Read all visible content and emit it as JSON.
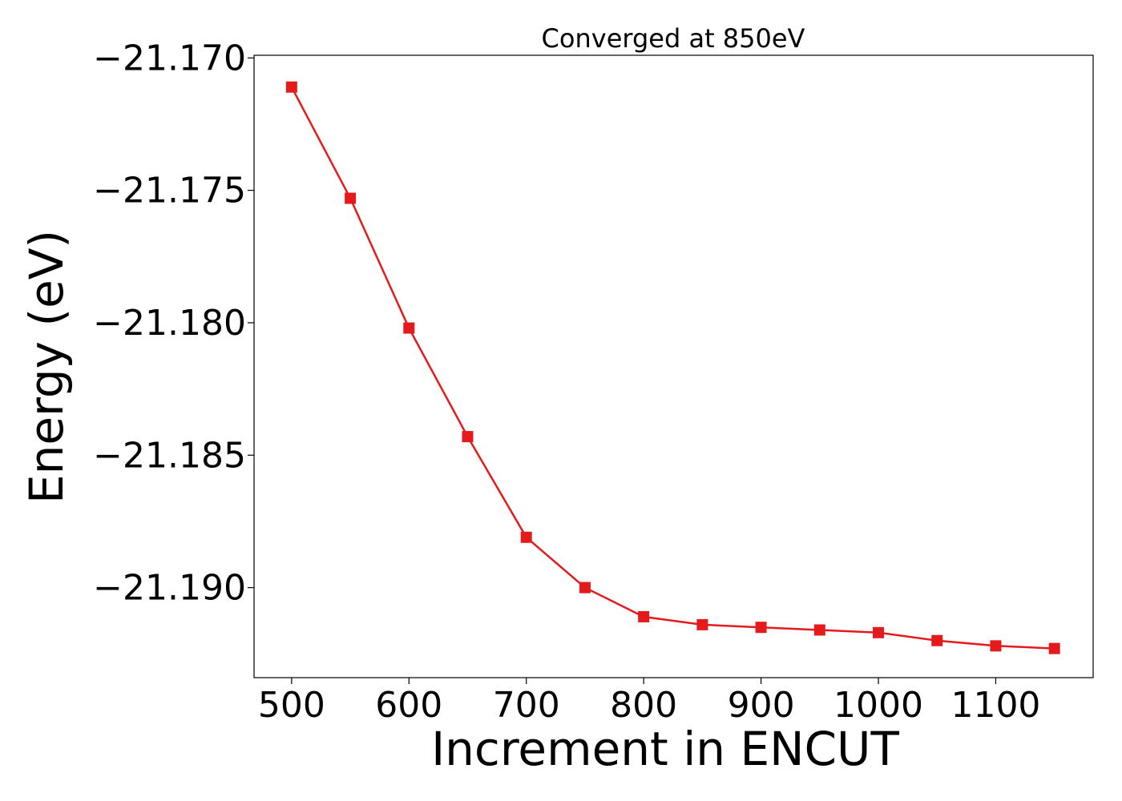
{
  "chart_data": {
    "type": "line",
    "title": "Converged at 850eV",
    "xlabel": "Increment in ENCUT",
    "ylabel": "Energy (eV)",
    "xlim": [
      468,
      1183
    ],
    "ylim": [
      -21.1934,
      -21.1699
    ],
    "x_ticks": [
      500,
      600,
      700,
      800,
      900,
      1000,
      1100
    ],
    "x_tick_labels": [
      "500",
      "600",
      "700",
      "800",
      "900",
      "1000",
      "1100"
    ],
    "y_ticks": [
      -21.17,
      -21.175,
      -21.18,
      -21.185,
      -21.19
    ],
    "y_tick_labels": [
      "−21.170",
      "−21.175",
      "−21.180",
      "−21.185",
      "−21.190"
    ],
    "grid": false,
    "legend": "none",
    "series": [
      {
        "color": "#e41a1c",
        "marker": "square",
        "x": [
          500,
          550,
          600,
          650,
          700,
          750,
          800,
          850,
          900,
          950,
          1000,
          1050,
          1100,
          1150
        ],
        "y": [
          -21.1711,
          -21.1753,
          -21.1802,
          -21.1843,
          -21.1881,
          -21.19,
          -21.1911,
          -21.1914,
          -21.1915,
          -21.1916,
          -21.1917,
          -21.192,
          -21.1922,
          -21.1923
        ]
      }
    ]
  }
}
